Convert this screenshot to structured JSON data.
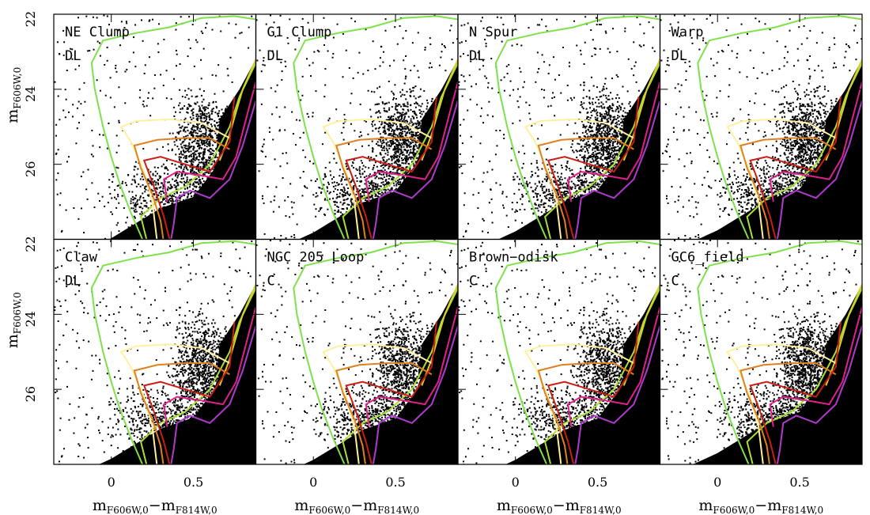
{
  "chart_data": {
    "type": "scatter",
    "layout": {
      "rows": 2,
      "cols": 4
    },
    "xlim": [
      -0.35,
      0.88
    ],
    "ylim": [
      28.0,
      22.0
    ],
    "xticks": [
      0,
      0.5
    ],
    "xtick_labels": [
      "0",
      "0.5"
    ],
    "yticks": [
      24,
      26
    ],
    "ytick_labels_top": [
      "22",
      "24",
      "26",
      "22"
    ],
    "ytick_labels_bottom": [
      "24",
      "26"
    ],
    "xlabel": {
      "main": "m",
      "sub1": "F606W,0",
      "sep": "−m",
      "sub2": "F814W,0"
    },
    "ylabel": {
      "main": "m",
      "sub": "F606W,0"
    },
    "panels": [
      {
        "title": "NE Clump",
        "type": "DL",
        "density": 0.55
      },
      {
        "title": "G1 Clump",
        "type": "DL",
        "density": 0.8
      },
      {
        "title": "N Spur",
        "type": "DL",
        "density": 0.85
      },
      {
        "title": "Warp",
        "type": "DL",
        "density": 0.9
      },
      {
        "title": "Claw",
        "type": "DL",
        "density": 0.75
      },
      {
        "title": "NGC 205 Loop",
        "type": "C",
        "density": 0.7
      },
      {
        "title": "Brown−odisk",
        "type": "C",
        "density": 0.7
      },
      {
        "title": "GC6_field",
        "type": "C",
        "density": 1.0
      }
    ],
    "isochrones": [
      {
        "color": "#7ee04a",
        "points": [
          [
            0.9,
            22.15
          ],
          [
            0.75,
            22.05
          ],
          [
            0.55,
            22.1
          ],
          [
            0.35,
            22.35
          ],
          [
            0.15,
            22.5
          ],
          [
            -0.05,
            22.7
          ],
          [
            -0.12,
            23.3
          ],
          [
            -0.1,
            24.0
          ],
          [
            -0.05,
            25.0
          ],
          [
            0.0,
            25.8
          ],
          [
            0.05,
            26.5
          ],
          [
            0.12,
            27.3
          ],
          [
            0.2,
            28.1
          ]
        ]
      },
      {
        "color": "#a8e036",
        "points": [
          [
            0.88,
            23.3
          ],
          [
            0.78,
            24.2
          ],
          [
            0.72,
            25.0
          ],
          [
            0.6,
            26.0
          ],
          [
            0.45,
            26.6
          ],
          [
            0.3,
            26.9
          ],
          [
            0.18,
            27.4
          ],
          [
            0.22,
            28.1
          ]
        ]
      },
      {
        "color": "#d6d22a",
        "points": [
          [
            0.9,
            23.0
          ],
          [
            0.8,
            24.0
          ],
          [
            0.72,
            25.2
          ],
          [
            0.66,
            25.9
          ]
        ]
      },
      {
        "color": "#fff0a0",
        "points": [
          [
            0.72,
            25.3
          ],
          [
            0.55,
            24.9
          ],
          [
            0.35,
            24.8
          ],
          [
            0.15,
            24.85
          ],
          [
            0.06,
            25.0
          ],
          [
            0.12,
            25.4
          ],
          [
            0.2,
            26.2
          ],
          [
            0.25,
            27.0
          ],
          [
            0.28,
            28.1
          ]
        ]
      },
      {
        "color": "#e0801e",
        "points": [
          [
            0.72,
            25.6
          ],
          [
            0.6,
            25.3
          ],
          [
            0.45,
            25.3
          ],
          [
            0.28,
            25.35
          ],
          [
            0.14,
            25.5
          ],
          [
            0.18,
            26.1
          ],
          [
            0.25,
            26.8
          ],
          [
            0.3,
            27.5
          ],
          [
            0.32,
            28.1
          ]
        ]
      },
      {
        "color": "#c81e14",
        "points": [
          [
            0.75,
            24.2
          ],
          [
            0.72,
            25.4
          ],
          [
            0.6,
            26.2
          ],
          [
            0.45,
            26.0
          ],
          [
            0.3,
            25.8
          ],
          [
            0.2,
            25.9
          ],
          [
            0.26,
            26.6
          ],
          [
            0.32,
            27.4
          ],
          [
            0.36,
            28.1
          ]
        ]
      },
      {
        "color": "#e0208c",
        "points": [
          [
            0.88,
            23.8
          ],
          [
            0.82,
            24.8
          ],
          [
            0.76,
            25.8
          ],
          [
            0.68,
            26.4
          ],
          [
            0.55,
            26.3
          ],
          [
            0.4,
            26.2
          ],
          [
            0.32,
            26.4
          ],
          [
            0.34,
            27.0
          ]
        ]
      },
      {
        "color": "#b03ad0",
        "points": [
          [
            0.88,
            24.3
          ],
          [
            0.8,
            25.5
          ],
          [
            0.72,
            26.4
          ],
          [
            0.6,
            26.9
          ],
          [
            0.48,
            26.7
          ],
          [
            0.4,
            26.9
          ],
          [
            0.38,
            27.6
          ],
          [
            0.36,
            28.1
          ]
        ]
      }
    ]
  }
}
